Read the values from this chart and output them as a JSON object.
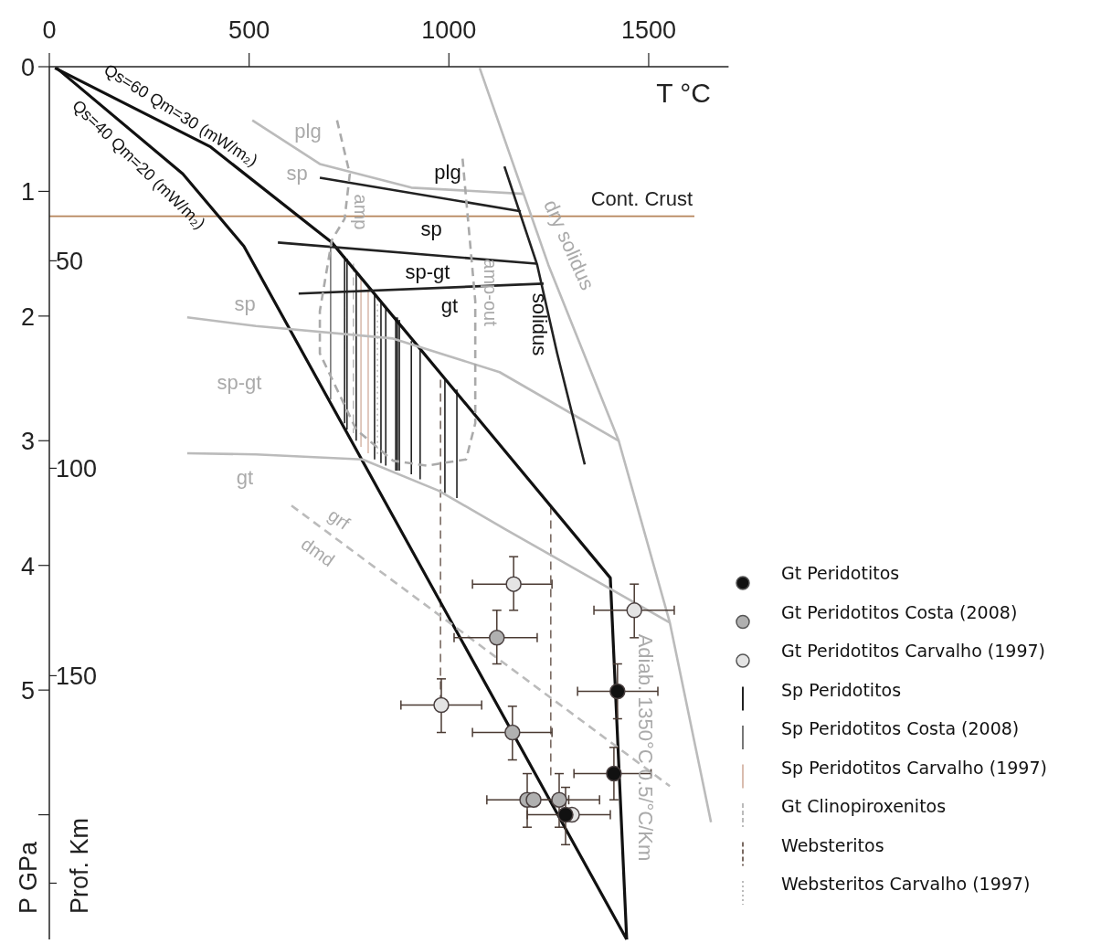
{
  "chart_data": {
    "type": "line",
    "xlabel": "T °C",
    "ylabel": "P GPa",
    "y2label": "Prof. Km",
    "xlim": [
      0,
      1700
    ],
    "xticks": [
      0,
      500,
      1000,
      1500
    ],
    "ylim": [
      7,
      0
    ],
    "yticks": [
      0,
      1,
      2,
      3,
      4,
      5,
      {
        "value": 6,
        "label": null
      }
    ],
    "y2lim": [
      214,
      3
    ],
    "y2ticks": [
      50,
      100,
      150,
      {
        "value": 200,
        "label": null
      }
    ],
    "legend": "right",
    "grid": false,
    "ref_lines": [
      {
        "axis": "y",
        "value": 1.2,
        "label": "Cont. Crust",
        "color": "#b5845a"
      }
    ],
    "annotations": [
      "plg",
      "sp",
      "plg",
      "sp",
      "sp-gt",
      "gt",
      "solidus",
      "dry solidus",
      "amp",
      "amp-out",
      "sp",
      "sp-gt",
      "gt",
      "grf",
      "dmd",
      "Qs=60 Qm=30 (mW/m₂)",
      "Qs=40 Qm=20 (mW/m₂)",
      "Adiab. 1350°C 0.5/°C/Km"
    ],
    "series": [
      {
        "type": "scatter",
        "name": "Gt Peridotitos",
        "color": "#111111",
        "marker": "circle",
        "x": [
          1422,
          1413,
          1292
        ],
        "values": [
          5.01,
          5.67,
          6.0
        ],
        "errors": [
          [
            4.79,
            5.23
          ],
          [
            5.46,
            5.88
          ],
          [
            5.78,
            6.24
          ]
        ],
        "xerrors": [
          [
            1322,
            1523
          ],
          [
            1313,
            1506
          ],
          [
            1196,
            1404
          ]
        ]
      },
      {
        "type": "scatter",
        "name": "Gt Peridotitos Costa (2008)",
        "color": "#b0b0b0",
        "marker": "circle",
        "x": [
          1120,
          1159,
          1196,
          1212,
          1276
        ],
        "values": [
          4.58,
          5.34,
          5.88,
          5.88,
          5.88
        ],
        "errors": [
          [
            4.36,
            4.79
          ],
          [
            5.13,
            5.56
          ],
          [
            5.67,
            6.1
          ],
          null,
          [
            5.67,
            6.1
          ]
        ],
        "xerrors": [
          [
            1013,
            1221
          ],
          [
            1059,
            1258
          ],
          [
            1095,
            1300
          ],
          null,
          [
            1198,
            1377
          ]
        ]
      },
      {
        "type": "scatter",
        "name": "Gt Peridotitos Carvalho (1997)",
        "color": "#e4e4e4",
        "marker": "circle",
        "x": [
          1162,
          1464,
          981,
          1308
        ],
        "values": [
          4.15,
          4.36,
          5.12,
          6.0
        ],
        "errors": [
          [
            3.93,
            4.36
          ],
          [
            4.15,
            4.58
          ],
          [
            4.91,
            5.34
          ],
          null
        ],
        "xerrors": [
          [
            1059,
            1258
          ],
          [
            1363,
            1564
          ],
          [
            880,
            1082
          ],
          null
        ]
      },
      {
        "name": "Sp Peridotitos",
        "color": "#222222",
        "x": [
          739,
          739,
          null,
          745,
          745,
          null,
          768,
          768,
          null,
          814,
          814,
          null,
          830,
          830,
          null,
          842,
          842,
          null,
          867,
          867,
          null,
          871,
          871,
          null,
          876,
          876,
          null,
          906,
          906,
          null,
          928,
          928,
          null,
          990,
          990,
          null,
          1020,
          1020
        ],
        "values": [
          1.52,
          2.86,
          null,
          1.54,
          2.91,
          null,
          1.64,
          3.0,
          null,
          1.83,
          3.15,
          null,
          1.88,
          3.18,
          null,
          1.93,
          3.2,
          null,
          2.01,
          3.24,
          null,
          2.01,
          3.24,
          null,
          2.03,
          3.24,
          null,
          2.2,
          3.27,
          null,
          2.27,
          3.31,
          null,
          2.51,
          3.42,
          null,
          2.59,
          3.46
        ]
      },
      {
        "name": "Sp Peridotitos Costa (2008)",
        "color": "#777777",
        "x": [
          704,
          704
        ],
        "values": [
          1.39,
          2.67
        ]
      },
      {
        "name": "Sp Peridotitos Carvalho (1997)",
        "color": "#d9bcae",
        "x": [
          780,
          780,
          null,
          798,
          798
        ],
        "values": [
          1.7,
          3.05,
          null,
          1.76,
          3.1
        ]
      },
      {
        "name": "Gt Clinopiroxenitos",
        "color": "#bbbbbb",
        "line_style": "dashed",
        "x": [
          761,
          761
        ],
        "values": [
          1.58,
          2.94
        ]
      },
      {
        "name": "Websteritos",
        "color": "#7a6a62",
        "line_style": "dashed",
        "x": [
          979,
          979,
          null,
          1255,
          1255
        ],
        "values": [
          2.51,
          5.12,
          null,
          3.53,
          5.69
        ]
      },
      {
        "name": "Websteritos Carvalho (1997)",
        "color": "#bbbbbb",
        "line_style": "dotted",
        "x": [
          821,
          821
        ],
        "values": [
          1.86,
          3.12
        ]
      },
      {
        "color": "#111111",
        "x": [
          14,
          402,
          707,
          1404,
          1445
        ],
        "values": [
          0.01,
          0.64,
          1.41,
          4.1,
          7.0
        ]
      },
      {
        "color": "#111111",
        "x": [
          18,
          334,
          487,
          1445
        ],
        "values": [
          0.01,
          0.86,
          1.44,
          7.0
        ]
      },
      {
        "color": "#bbbbbb",
        "x": [
          508,
          677,
          906,
          1187
        ],
        "values": [
          0.43,
          0.78,
          0.97,
          1.02
        ]
      },
      {
        "color": "#bbbbbb",
        "x": [
          345,
          517,
          860,
          1127,
          1425
        ],
        "values": [
          2.01,
          2.08,
          2.18,
          2.45,
          3.0
        ]
      },
      {
        "color": "#bbbbbb",
        "x": [
          345,
          517,
          784,
          974,
          1141,
          1553
        ],
        "values": [
          3.1,
          3.11,
          3.15,
          3.4,
          3.71,
          4.46
        ]
      },
      {
        "color": "#bbbbbb",
        "x": [
          1077,
          1249,
          1425,
          1553,
          1656
        ],
        "values": [
          0.01,
          1.59,
          3.0,
          4.46,
          6.06
        ]
      },
      {
        "color": "#bbbbbb",
        "line_style": "dashed",
        "x": [
          606,
          1553
        ],
        "values": [
          3.52,
          5.77
        ]
      },
      {
        "color": "#222222",
        "x": [
          677,
          1180
        ],
        "values": [
          0.89,
          1.16
        ]
      },
      {
        "color": "#222222",
        "x": [
          572,
          1219
        ],
        "values": [
          1.41,
          1.58
        ]
      },
      {
        "color": "#222222",
        "x": [
          624,
          1237
        ],
        "values": [
          1.82,
          1.74
        ]
      },
      {
        "color": "#222222",
        "x": [
          1139,
          1221,
          1271,
          1340
        ],
        "values": [
          0.8,
          1.59,
          2.3,
          3.19
        ]
      },
      {
        "color": "#aaaaaa",
        "line_style": "dashed",
        "x": [
          720,
          752,
          739,
          707,
          677,
          677,
          768,
          860,
          944,
          1043,
          1066,
          1066,
          1034
        ],
        "values": [
          0.43,
          0.86,
          1.22,
          1.39,
          1.96,
          2.3,
          2.91,
          3.16,
          3.2,
          3.15,
          2.86,
          1.88,
          0.73
        ]
      }
    ]
  }
}
